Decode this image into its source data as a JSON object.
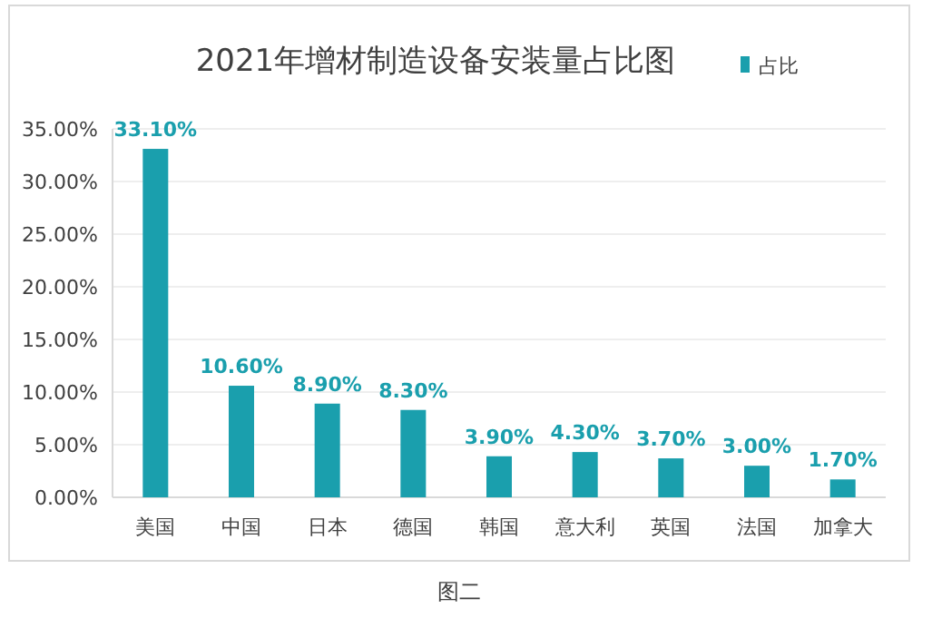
{
  "chart_data": {
    "type": "bar",
    "title": "2021年增材制造设备安装量占比图",
    "categories": [
      "美国",
      "中国",
      "日本",
      "德国",
      "韩国",
      "意大利",
      "英国",
      "法国",
      "加拿大"
    ],
    "series": [
      {
        "name": "占比",
        "color": "#1a9fad",
        "values": [
          33.1,
          10.6,
          8.9,
          8.3,
          3.9,
          4.3,
          3.7,
          3.0,
          1.7
        ],
        "value_labels": [
          "33.10%",
          "10.60%",
          "8.90%",
          "8.30%",
          "3.90%",
          "4.30%",
          "3.70%",
          "3.00%",
          "1.70%"
        ]
      }
    ],
    "ylim": [
      0,
      35
    ],
    "yticks": [
      {
        "value": 0,
        "label": "0.00%"
      },
      {
        "value": 5,
        "label": "5.00%"
      },
      {
        "value": 10,
        "label": "10.00%"
      },
      {
        "value": 15,
        "label": "15.00%"
      },
      {
        "value": 20,
        "label": "20.00%"
      },
      {
        "value": 25,
        "label": "25.00%"
      },
      {
        "value": 30,
        "label": "30.00%"
      },
      {
        "value": 35,
        "label": "35.00%"
      }
    ],
    "grid": "y",
    "legend": "top right",
    "annotations": [
      "图二"
    ]
  }
}
